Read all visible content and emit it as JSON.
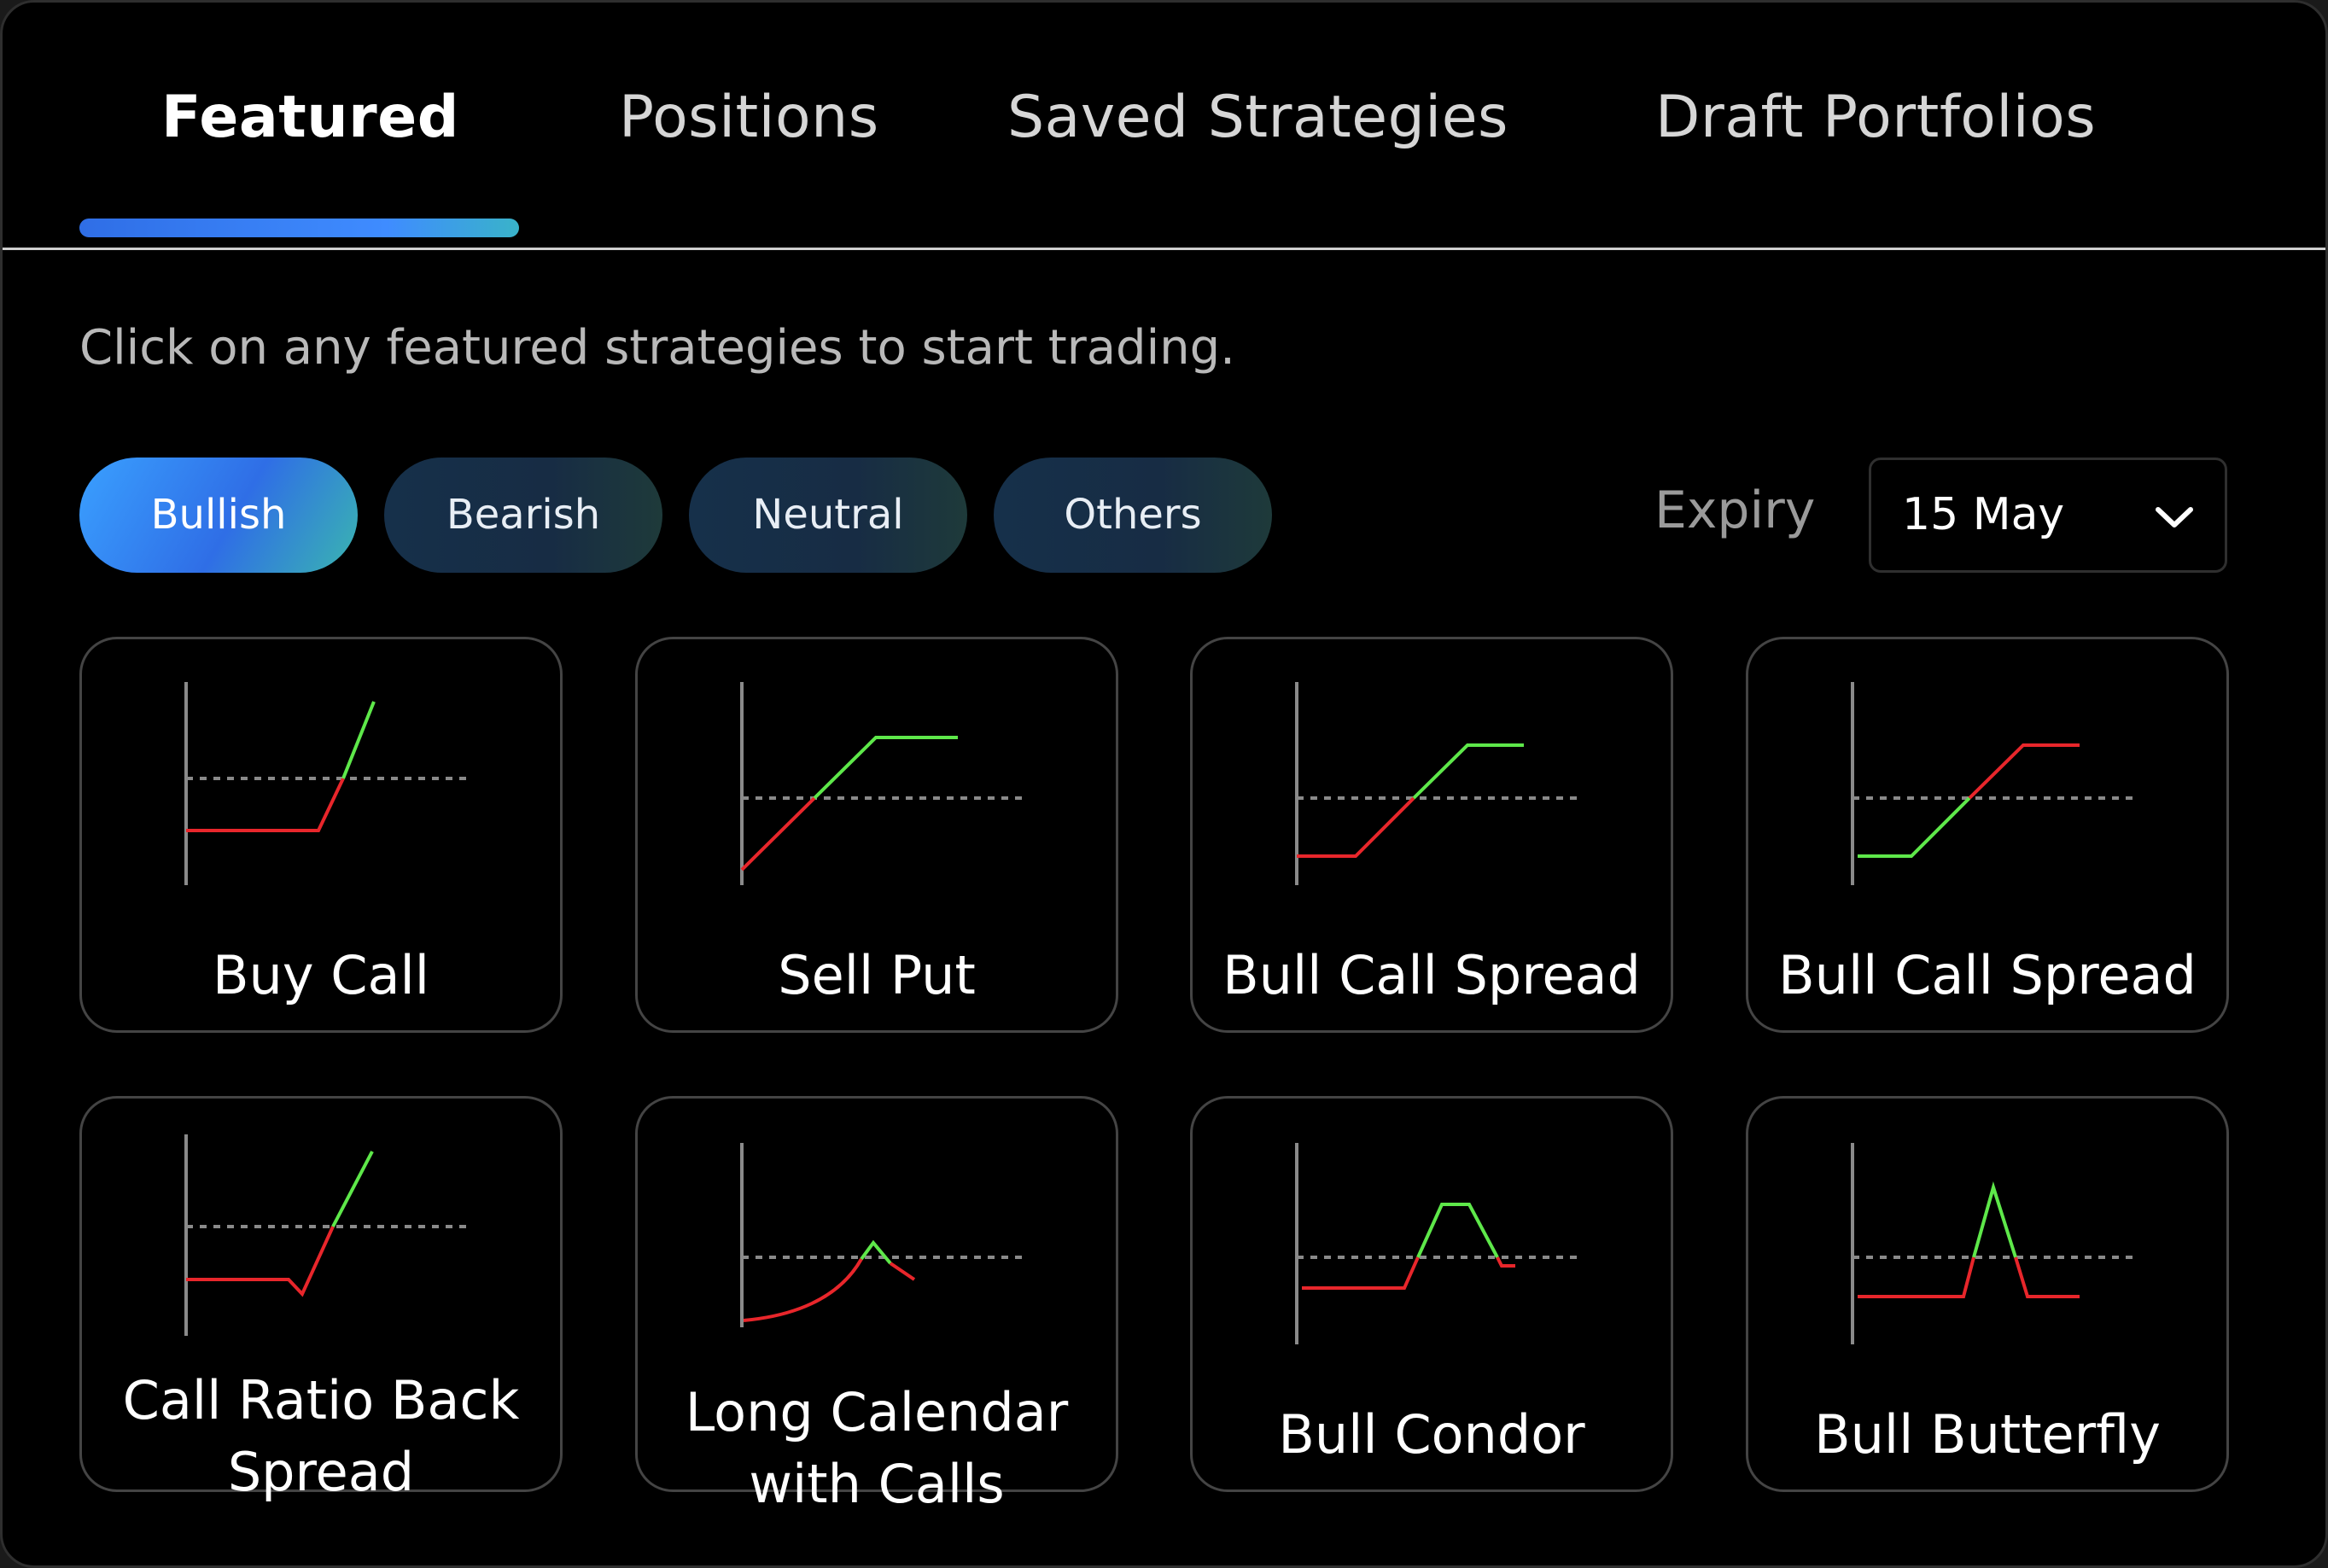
{
  "tabs": [
    {
      "label": "Featured",
      "active": true
    },
    {
      "label": "Positions",
      "active": false
    },
    {
      "label": "Saved Strategies",
      "active": false
    },
    {
      "label": "Draft Portfolios",
      "active": false
    }
  ],
  "hint": "Click on any featured strategies to start trading.",
  "filters": [
    {
      "label": "Bullish",
      "active": true
    },
    {
      "label": "Bearish",
      "active": false
    },
    {
      "label": "Neutral",
      "active": false
    },
    {
      "label": "Others",
      "active": false
    }
  ],
  "expiry": {
    "label": "Expiry",
    "value": "15 May",
    "icon": "chevron-down-icon"
  },
  "colors": {
    "accent": "#3f8cff",
    "profit": "#5ee84a",
    "loss": "#e8262b",
    "axis": "#8a8a8a"
  },
  "strategies": [
    {
      "title": "Buy Call",
      "title_lines": [
        "Buy Call"
      ]
    },
    {
      "title": "Sell Put",
      "title_lines": [
        "Sell Put"
      ]
    },
    {
      "title": "Bull Call Spread",
      "title_lines": [
        "Bull Call Spread"
      ]
    },
    {
      "title": "Bull Call Spread",
      "title_lines": [
        "Bull Call Spread"
      ]
    },
    {
      "title": "Call Ratio Back Spread",
      "title_lines": [
        "Call Ratio Back",
        "Spread"
      ]
    },
    {
      "title": "Long Calendar with Calls",
      "title_lines": [
        "Long Calendar",
        "with Calls"
      ]
    },
    {
      "title": "Bull Condor",
      "title_lines": [
        "Bull Condor"
      ]
    },
    {
      "title": "Bull Butterfly",
      "title_lines": [
        "Bull Butterfly"
      ]
    }
  ]
}
